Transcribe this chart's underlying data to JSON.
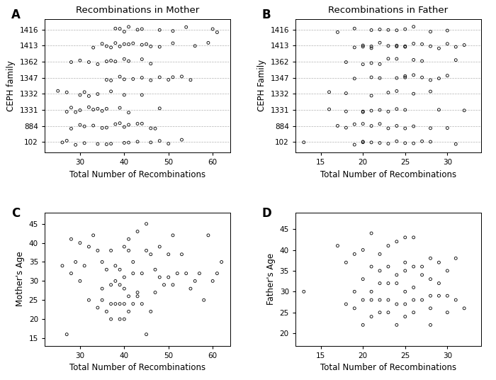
{
  "families": [
    102,
    884,
    1331,
    1332,
    1347,
    1362,
    1413,
    1416
  ],
  "panel_A_title": "Recombinations in Mother",
  "panel_B_title": "Recombinations in Father",
  "panel_AB_ylabel_A": "CEPH family",
  "panel_AB_ylabel_B": "CEPH Family",
  "panel_C_ylabel": "Mother's Age",
  "panel_D_ylabel": "Father's Age",
  "panel_ABCD_xlabel": "Total Number of Recombinations",
  "panel_A_xlim": [
    22,
    64
  ],
  "panel_B_xlim": [
    12,
    34
  ],
  "panel_C_xlim": [
    22,
    64
  ],
  "panel_D_xlim": [
    12,
    34
  ],
  "panel_C_ylim": [
    13,
    48
  ],
  "panel_D_ylim": [
    17,
    49
  ],
  "panel_A_xticks": [
    30,
    40,
    50,
    60
  ],
  "panel_B_xticks": [
    15,
    20,
    25,
    30
  ],
  "panel_C_xticks": [
    30,
    40,
    50,
    60
  ],
  "panel_C_yticks": [
    15,
    20,
    25,
    30,
    35,
    40,
    45
  ],
  "panel_D_xticks": [
    15,
    20,
    25,
    30
  ],
  "panel_D_yticks": [
    20,
    25,
    30,
    35,
    40,
    45
  ],
  "mother_data": {
    "102": [
      26,
      27,
      29,
      31,
      34,
      36,
      37,
      40,
      41,
      43,
      46,
      48,
      50,
      53
    ],
    "884": [
      28,
      30,
      31,
      33,
      35,
      36,
      38,
      39,
      40,
      41,
      43,
      44,
      46,
      47
    ],
    "1331": [
      27,
      28,
      29,
      30,
      32,
      33,
      34,
      35,
      36,
      39,
      41,
      48
    ],
    "1332": [
      25,
      27,
      30,
      31,
      32,
      34,
      37,
      40,
      44
    ],
    "1347": [
      36,
      37,
      39,
      40,
      42,
      44,
      46,
      48,
      50,
      51,
      53,
      55
    ],
    "1362": [
      28,
      30,
      32,
      34,
      36,
      37,
      38,
      40,
      41,
      44,
      46
    ],
    "1413": [
      33,
      35,
      36,
      37,
      38,
      39,
      40,
      41,
      42,
      44,
      45,
      46,
      48,
      51,
      56,
      59
    ],
    "1416": [
      38,
      39,
      40,
      41,
      43,
      44,
      48,
      51,
      54,
      60,
      61
    ]
  },
  "father_data": {
    "102": [
      13,
      19,
      20,
      20,
      21,
      22,
      23,
      24,
      25,
      26,
      27,
      28,
      31
    ],
    "884": [
      17,
      18,
      19,
      20,
      21,
      22,
      23,
      24,
      25,
      26,
      28,
      30
    ],
    "1331": [
      16,
      18,
      20,
      20,
      21,
      22,
      23,
      24,
      25,
      29,
      32
    ],
    "1332": [
      16,
      18,
      21,
      23,
      24,
      26,
      28
    ],
    "1347": [
      19,
      21,
      22,
      24,
      25,
      25,
      26,
      27,
      28,
      29,
      30
    ],
    "1362": [
      18,
      20,
      21,
      22,
      23,
      24,
      26,
      27,
      31
    ],
    "1413": [
      19,
      20,
      20,
      21,
      21,
      22,
      23,
      24,
      24,
      25,
      25,
      26,
      27,
      28,
      29,
      30,
      31,
      32
    ],
    "1416": [
      17,
      19,
      21,
      22,
      23,
      24,
      25,
      26,
      28,
      30
    ]
  },
  "mother_age_x": [
    27,
    28,
    30,
    31,
    32,
    32,
    33,
    34,
    34,
    35,
    35,
    35,
    36,
    36,
    37,
    37,
    37,
    37,
    38,
    38,
    38,
    39,
    39,
    39,
    39,
    40,
    40,
    40,
    40,
    40,
    41,
    41,
    41,
    41,
    42,
    42,
    42,
    43,
    43,
    43,
    44,
    44,
    45,
    45,
    45,
    46,
    46,
    47,
    47,
    48,
    48,
    49,
    50,
    50,
    51,
    51,
    52,
    53,
    54,
    55,
    56,
    57,
    58,
    59,
    60,
    61,
    62,
    26,
    28,
    29,
    30
  ],
  "mother_age_y": [
    16,
    41,
    40,
    34,
    25,
    39,
    42,
    23,
    38,
    28,
    35,
    25,
    33,
    22,
    38,
    29,
    24,
    20,
    34,
    30,
    24,
    33,
    29,
    24,
    20,
    39,
    31,
    28,
    24,
    20,
    41,
    26,
    22,
    38,
    32,
    24,
    35,
    26,
    43,
    27,
    32,
    24,
    45,
    38,
    16,
    37,
    22,
    33,
    27,
    31,
    39,
    29,
    37,
    31,
    42,
    29,
    32,
    37,
    32,
    28,
    30,
    32,
    25,
    42,
    30,
    32,
    35,
    34,
    32,
    35,
    30
  ],
  "father_age_x": [
    13,
    17,
    18,
    18,
    19,
    19,
    19,
    20,
    20,
    20,
    20,
    21,
    21,
    21,
    21,
    21,
    22,
    22,
    22,
    22,
    22,
    23,
    23,
    23,
    23,
    23,
    24,
    24,
    24,
    24,
    24,
    25,
    25,
    25,
    25,
    25,
    25,
    26,
    26,
    26,
    26,
    26,
    27,
    27,
    27,
    28,
    28,
    28,
    28,
    28,
    29,
    29,
    29,
    30,
    30,
    30,
    31,
    31,
    32
  ],
  "father_age_y": [
    30,
    41,
    27,
    37,
    26,
    30,
    39,
    22,
    28,
    33,
    40,
    24,
    28,
    30,
    36,
    44,
    25,
    28,
    32,
    35,
    39,
    25,
    28,
    32,
    36,
    41,
    22,
    27,
    32,
    34,
    42,
    24,
    27,
    30,
    35,
    37,
    43,
    25,
    28,
    31,
    36,
    43,
    28,
    34,
    36,
    22,
    26,
    29,
    33,
    38,
    29,
    32,
    37,
    25,
    29,
    35,
    28,
    38,
    26
  ]
}
